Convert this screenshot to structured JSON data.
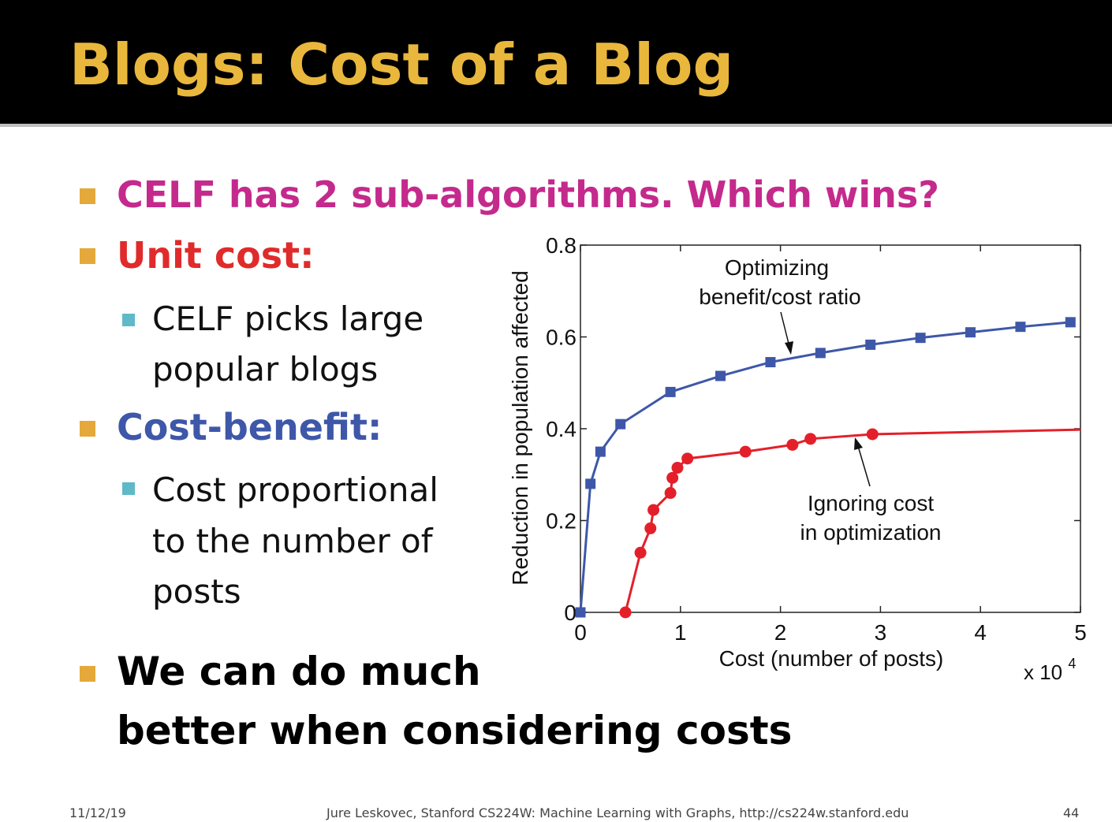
{
  "slide": {
    "title": "Blogs: Cost of a Blog",
    "bullets": [
      {
        "text": "CELF has 2 sub-algorithms. Which wins?",
        "color": "#c42a8c"
      },
      {
        "text": "Unit cost:",
        "color": "#e02b2b"
      },
      {
        "text": "Cost-benefit:",
        "color": "#3e57a8"
      },
      {
        "line1": "We can do much",
        "line2": "better when considering costs",
        "color": "#000000"
      }
    ],
    "sub_bullets": [
      {
        "line1": "CELF picks large",
        "line2": "popular blogs"
      },
      {
        "line1": "Cost proportional",
        "line2": "to the number of",
        "line3": "posts"
      }
    ]
  },
  "footer": {
    "date": "11/12/19",
    "credit": "Jure Leskovec, Stanford CS224W: Machine Learning with Graphs, http://cs224w.stanford.edu",
    "page": "44"
  },
  "chart_data": {
    "type": "line",
    "xlabel": "Cost (number of posts)",
    "x_multiplier_label": "x 10",
    "x_multiplier_exp": "4",
    "ylabel": "Reduction in population affected",
    "xlim": [
      0,
      5
    ],
    "ylim": [
      0,
      0.8
    ],
    "xticks": [
      "0",
      "1",
      "2",
      "3",
      "4",
      "5"
    ],
    "yticks": [
      "0",
      "0.2",
      "0.4",
      "0.6",
      "0.8"
    ],
    "grid": false,
    "annotations": [
      {
        "line1": "Optimizing",
        "line2": "benefit/cost ratio"
      },
      {
        "line1": "Ignoring cost",
        "line2": "in optimization"
      }
    ],
    "series": [
      {
        "color": "#3e57a8",
        "marker": "square",
        "x": [
          0,
          0.1,
          0.2,
          0.4,
          0.9,
          1.4,
          1.9,
          2.4,
          2.9,
          3.4,
          3.9,
          4.4,
          4.9
        ],
        "y": [
          0,
          0.28,
          0.35,
          0.41,
          0.48,
          0.515,
          0.545,
          0.565,
          0.583,
          0.598,
          0.61,
          0.622,
          0.632
        ]
      },
      {
        "color": "#e3202a",
        "marker": "circle",
        "x": [
          0.45,
          0.6,
          0.7,
          0.73,
          0.9,
          0.92,
          0.97,
          1.07,
          1.65,
          2.12,
          2.3,
          2.92,
          5.0
        ],
        "y": [
          0,
          0.13,
          0.183,
          0.223,
          0.26,
          0.293,
          0.315,
          0.335,
          0.35,
          0.365,
          0.378,
          0.388,
          0.398
        ],
        "marker_count": 12
      }
    ]
  }
}
